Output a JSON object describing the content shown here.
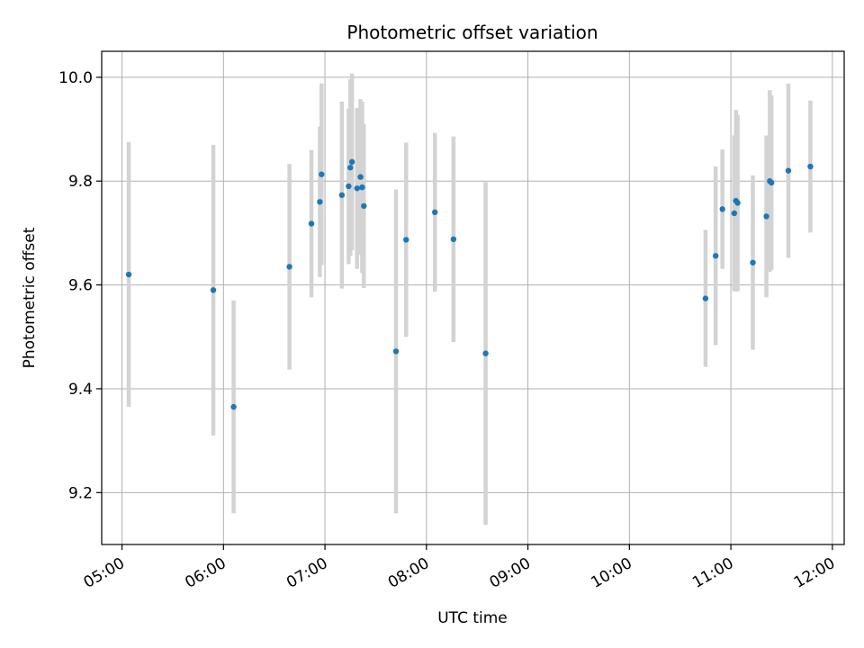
{
  "chart_data": {
    "type": "scatter",
    "title": "Photometric offset variation",
    "xlabel": "UTC time",
    "ylabel": "Photometric offset",
    "x_ticks": [
      "05:00",
      "06:00",
      "07:00",
      "08:00",
      "09:00",
      "10:00",
      "11:00",
      "12:00"
    ],
    "y_ticks": [
      "9.2",
      "9.4",
      "9.6",
      "9.8",
      "10.0"
    ],
    "xlim": [
      "04:48",
      "12:07"
    ],
    "ylim": [
      9.1,
      10.05
    ],
    "grid": true,
    "colors": {
      "marker": "#1f77b4",
      "errorbar": "#d3d3d3",
      "grid": "#b0b0b0"
    },
    "points": [
      {
        "x": "05:04",
        "y": 9.62,
        "err": 0.255
      },
      {
        "x": "05:54",
        "y": 9.59,
        "err": 0.28
      },
      {
        "x": "06:06",
        "y": 9.365,
        "err": 0.205
      },
      {
        "x": "06:39",
        "y": 9.635,
        "err": 0.198
      },
      {
        "x": "06:52",
        "y": 9.718,
        "err": 0.142
      },
      {
        "x": "06:57",
        "y": 9.76,
        "err": 0.145
      },
      {
        "x": "06:58",
        "y": 9.813,
        "err": 0.175
      },
      {
        "x": "07:10",
        "y": 9.773,
        "err": 0.18
      },
      {
        "x": "07:14",
        "y": 9.79,
        "err": 0.15
      },
      {
        "x": "07:15",
        "y": 9.826,
        "err": 0.17
      },
      {
        "x": "07:16",
        "y": 9.837,
        "err": 0.17
      },
      {
        "x": "07:19",
        "y": 9.786,
        "err": 0.155
      },
      {
        "x": "07:21",
        "y": 9.808,
        "err": 0.15
      },
      {
        "x": "07:22",
        "y": 9.788,
        "err": 0.165
      },
      {
        "x": "07:23",
        "y": 9.752,
        "err": 0.158
      },
      {
        "x": "07:42",
        "y": 9.472,
        "err": 0.312
      },
      {
        "x": "07:48",
        "y": 9.687,
        "err": 0.187
      },
      {
        "x": "08:05",
        "y": 9.74,
        "err": 0.153
      },
      {
        "x": "08:16",
        "y": 9.688,
        "err": 0.198
      },
      {
        "x": "08:35",
        "y": 9.468,
        "err": 0.33
      },
      {
        "x": "10:45",
        "y": 9.574,
        "err": 0.132
      },
      {
        "x": "10:51",
        "y": 9.656,
        "err": 0.172
      },
      {
        "x": "10:55",
        "y": 9.746,
        "err": 0.115
      },
      {
        "x": "11:02",
        "y": 9.738,
        "err": 0.15
      },
      {
        "x": "11:03",
        "y": 9.762,
        "err": 0.175
      },
      {
        "x": "11:04",
        "y": 9.758,
        "err": 0.17
      },
      {
        "x": "11:13",
        "y": 9.643,
        "err": 0.168
      },
      {
        "x": "11:21",
        "y": 9.732,
        "err": 0.156
      },
      {
        "x": "11:23",
        "y": 9.8,
        "err": 0.175
      },
      {
        "x": "11:24",
        "y": 9.797,
        "err": 0.168
      },
      {
        "x": "11:34",
        "y": 9.82,
        "err": 0.168
      },
      {
        "x": "11:47",
        "y": 9.828,
        "err": 0.127
      }
    ]
  }
}
